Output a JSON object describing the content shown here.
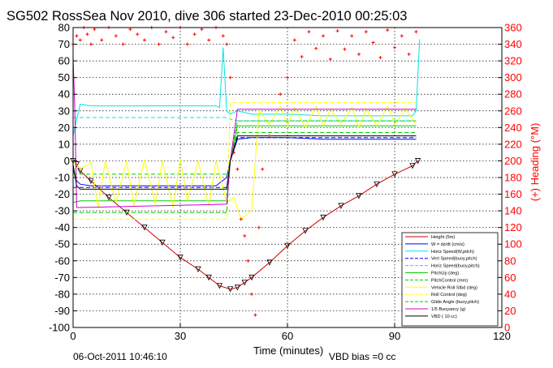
{
  "chart_data": {
    "type": "line",
    "title": "SG502 RossSea Nov 2010, dive 306 started 23-Dec-2010 00:25:03",
    "xlabel": "Time (minutes)",
    "ylabel_right": "(+) Heading (°M)",
    "xlim": [
      0,
      120
    ],
    "ylim_left": [
      -100,
      80
    ],
    "ylim_right": [
      0,
      360
    ],
    "xticks": [
      "0",
      "30",
      "60",
      "90",
      "120"
    ],
    "yticks_left": [
      "80",
      "70",
      "60",
      "50",
      "40",
      "30",
      "20",
      "10",
      "0",
      "-10",
      "-20",
      "-30",
      "-40",
      "-50",
      "-60",
      "-70",
      "-80",
      "-90",
      "-100"
    ],
    "yticks_right": [
      "360",
      "340",
      "320",
      "300",
      "280",
      "260",
      "240",
      "220",
      "200",
      "180",
      "160",
      "140",
      "120",
      "100",
      "80",
      "60",
      "40",
      "20",
      "0"
    ],
    "grid": true,
    "legend_position": "lower-right",
    "footer_date": "06-Oct-2011 10:46:10",
    "footer_note": "VBD bias =0 cc",
    "colors": {
      "height": "#cc0000",
      "w": "#0000ff",
      "speed": "#00e5e5",
      "pitch": "#00cc00",
      "roll": "#ffff00",
      "buoyancy": "#cc00cc",
      "vbd": "#000000",
      "heading": "#ff0000"
    },
    "series": [
      {
        "name": "Height (5m)",
        "style": "solid",
        "color": "#cc0000",
        "x": [
          0,
          1,
          2,
          5,
          10,
          15,
          20,
          25,
          30,
          35,
          38,
          41,
          44,
          46,
          48,
          50,
          55,
          60,
          65,
          70,
          75,
          80,
          85,
          90,
          95,
          96.5
        ],
        "y": [
          0,
          -2,
          -6,
          -12,
          -22,
          -31,
          -40,
          -49,
          -58,
          -65,
          -70,
          -75,
          -77,
          -76,
          -73,
          -70,
          -61,
          -51,
          -42,
          -34,
          -27,
          -21,
          -14,
          -8,
          -3,
          0
        ]
      },
      {
        "name": "W = dz/dt (cm/s)",
        "style": "solid",
        "color": "#0000ff",
        "x": [
          0,
          1,
          2,
          5,
          10,
          20,
          30,
          40,
          43,
          44,
          46,
          50,
          60,
          70,
          80,
          90,
          96
        ],
        "y": [
          -5,
          -12,
          -14,
          -15,
          -15,
          -15,
          -15,
          -15,
          -10,
          0,
          13,
          14,
          14,
          13,
          13,
          13,
          13
        ]
      },
      {
        "name": "Horiz Speed(W,pitch)",
        "style": "solid",
        "color": "#00e5e5",
        "x": [
          0,
          1,
          2,
          5,
          10,
          20,
          30,
          40,
          41,
          42,
          43,
          44,
          46,
          50,
          60,
          70,
          80,
          90,
          95,
          96,
          97
        ],
        "y": [
          15,
          25,
          34,
          33,
          33,
          33,
          33,
          33,
          32,
          68,
          30,
          28,
          30,
          28,
          28,
          27,
          27,
          27,
          27,
          30,
          73
        ]
      },
      {
        "name": "Vert Speed(buoy,pitch)",
        "style": "dashed",
        "color": "#0000ff",
        "x": [
          0,
          2,
          43,
          44,
          46,
          96
        ],
        "y": [
          -16,
          -16,
          -16,
          0,
          14,
          14
        ]
      },
      {
        "name": "Horiz Speed(buoy,pitch)",
        "style": "dashed",
        "color": "#00e5e5",
        "x": [
          0,
          2,
          43,
          44,
          46,
          96
        ],
        "y": [
          26,
          26,
          26,
          25,
          24,
          24
        ]
      },
      {
        "name": "PitchUp (deg)",
        "style": "solid",
        "color": "#00cc00",
        "x": [
          0,
          2,
          5,
          43,
          44,
          46,
          50,
          96
        ],
        "y": [
          -25,
          -24,
          -24,
          -24,
          0,
          21,
          21,
          21
        ]
      },
      {
        "name": "PitchControl (mm)",
        "style": "dashed",
        "color": "#00cc00",
        "x": [
          0,
          2,
          43,
          44,
          46,
          96
        ],
        "y": [
          -8,
          -8,
          -8,
          0,
          17,
          17
        ]
      },
      {
        "name": "Vehicle Roll Stbd (deg)",
        "style": "solid",
        "color": "#ffff00",
        "x": [
          0,
          2,
          5,
          7,
          9,
          12,
          15,
          17,
          20,
          23,
          25,
          28,
          30,
          32,
          35,
          38,
          40,
          43,
          45,
          47,
          50,
          52,
          55,
          58,
          60,
          62,
          65,
          68,
          70,
          72,
          75,
          78,
          80,
          82,
          85,
          88,
          90,
          93,
          96
        ],
        "y": [
          0,
          -5,
          -1,
          -28,
          0,
          -25,
          0,
          -27,
          1,
          -26,
          0,
          -28,
          1,
          -24,
          0,
          -27,
          0,
          -25,
          -22,
          -35,
          -30,
          30,
          22,
          33,
          21,
          32,
          20,
          33,
          21,
          31,
          22,
          32,
          20,
          31,
          21,
          33,
          22,
          31,
          22
        ]
      },
      {
        "name": "Roll Control (deg)",
        "style": "dashed",
        "color": "#ffff00",
        "x": [
          0,
          43,
          44,
          96
        ],
        "y": [
          -35,
          -35,
          35,
          35
        ]
      },
      {
        "name": "Glide Angle (buoy,pitch)",
        "style": "dashed",
        "color": "#00cc00",
        "x": [
          0,
          2,
          43,
          44,
          46,
          96
        ],
        "y": [
          -31,
          -31,
          -31,
          0,
          24,
          24
        ]
      },
      {
        "name": "1/5 Buoyancy (g)",
        "style": "solid",
        "color": "#cc00cc",
        "x": [
          0,
          0.5,
          1,
          2,
          43,
          44,
          46,
          96
        ],
        "y": [
          62,
          30,
          -28,
          -28,
          -26,
          0,
          31,
          31
        ]
      },
      {
        "name": "VBD ( 10 cc)",
        "style": "solid",
        "color": "#000000",
        "x": [
          0,
          1,
          2,
          43,
          44,
          46,
          96
        ],
        "y": [
          -2,
          -15,
          -17,
          -17,
          0,
          15,
          15
        ]
      },
      {
        "name": "Heading (°M)",
        "style": "markers",
        "color": "#ff0000",
        "axis": "right",
        "x": [
          0,
          1,
          2,
          3,
          4,
          5,
          6,
          8,
          10,
          12,
          14,
          16,
          18,
          20,
          22,
          24,
          26,
          28,
          30,
          32,
          34,
          36,
          38,
          40,
          42,
          43,
          44,
          45,
          46,
          47,
          48,
          49,
          50,
          51,
          52,
          53,
          55,
          58,
          60,
          62,
          64,
          66,
          68,
          70,
          72,
          74,
          76,
          78,
          80,
          82,
          84,
          86,
          88,
          90,
          92,
          94,
          96
        ],
        "y": [
          340,
          350,
          345,
          360,
          352,
          340,
          358,
          345,
          360,
          350,
          340,
          358,
          352,
          345,
          360,
          340,
          355,
          348,
          360,
          340,
          352,
          358,
          345,
          360,
          350,
          340,
          300,
          210,
          190,
          130,
          110,
          80,
          40,
          15,
          120,
          190,
          230,
          280,
          300,
          345,
          325,
          355,
          335,
          350,
          322,
          356,
          334,
          350,
          328,
          355,
          342,
          324,
          357,
          336,
          350,
          328,
          355
        ]
      }
    ]
  }
}
